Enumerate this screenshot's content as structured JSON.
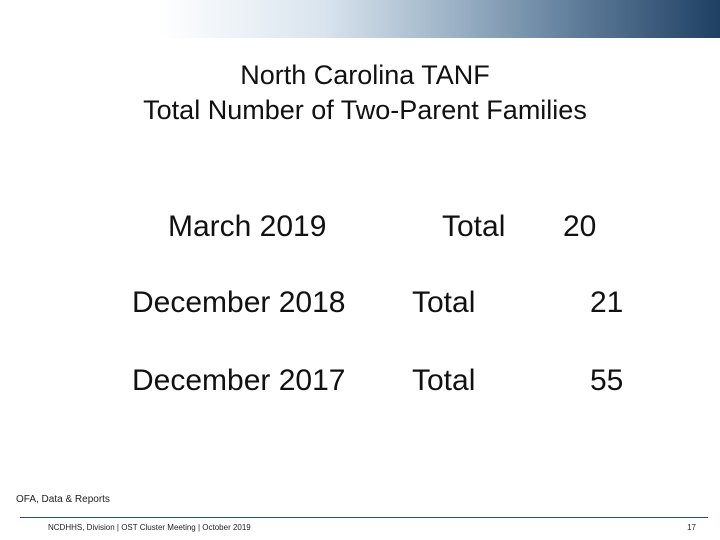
{
  "slide": {
    "title_line_1": "North Carolina TANF",
    "title_line_2": "Total Number of Two-Parent Families",
    "rows": [
      {
        "period": "March 2019",
        "label": "Total",
        "value": "20"
      },
      {
        "period": "December 2018",
        "label": "Total",
        "value": "21"
      },
      {
        "period": "December 2017",
        "label": "Total",
        "value": "55"
      }
    ],
    "footer_note": "OFA, Data & Reports",
    "footer_text": "NCDHHS, Division | OST Cluster Meeting | October 2019",
    "page_number": "17"
  },
  "colors": {
    "header_gradient_end": "#1f3f63",
    "footer_rule": "#2c4b6e"
  }
}
